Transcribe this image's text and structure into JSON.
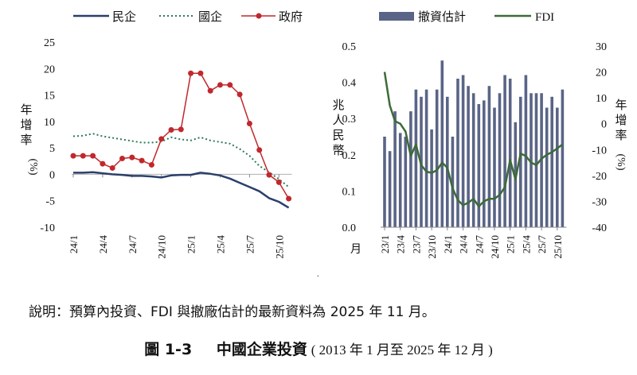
{
  "chart_data": [
    {
      "type": "line",
      "ylim": [
        -10,
        25
      ],
      "yticks": [
        25,
        20,
        15,
        10,
        5,
        0,
        -5,
        -10
      ],
      "ylabel_chars": [
        "年",
        "增",
        "率",
        "(%)"
      ],
      "xtick_labels": [
        "24/1",
        "24/4",
        "24/7",
        "24/10",
        "25/1",
        "25/4",
        "25/7",
        "25/10"
      ],
      "xtick_index": [
        0,
        3,
        6,
        9,
        12,
        15,
        18,
        21
      ],
      "series": [
        {
          "name": "民企",
          "color": "#2b3f6a",
          "style": "solid",
          "values": [
            0.3,
            0.3,
            0.4,
            0.2,
            0.0,
            -0.1,
            -0.3,
            -0.3,
            -0.4,
            -0.6,
            -0.2,
            -0.1,
            -0.1,
            0.3,
            0.1,
            -0.2,
            -0.8,
            -1.6,
            -2.4,
            -3.2,
            -4.5,
            -5.2,
            -6.3
          ]
        },
        {
          "name": "國企",
          "color": "#2e7a57",
          "style": "dotted",
          "values": [
            7.2,
            7.3,
            7.7,
            7.2,
            6.9,
            6.6,
            6.3,
            6.0,
            6.0,
            6.2,
            7.0,
            6.6,
            6.4,
            7.0,
            6.4,
            6.1,
            5.8,
            4.8,
            3.5,
            1.6,
            0.4,
            -0.9,
            -2.4
          ]
        },
        {
          "name": "政府",
          "color": "#c0282d",
          "style": "marker",
          "values": [
            3.5,
            3.5,
            3.5,
            2.0,
            1.2,
            3.0,
            3.2,
            2.6,
            1.8,
            6.7,
            8.4,
            8.5,
            19.1,
            19.1,
            15.8,
            16.9,
            16.9,
            15.1,
            9.6,
            4.6,
            -0.1,
            -1.5,
            -4.6
          ]
        }
      ]
    },
    {
      "type": "bar+line",
      "ylim_left": [
        0.0,
        0.5
      ],
      "yticks_left": [
        0.5,
        0.4,
        0.3,
        0.2,
        0.1,
        0.0
      ],
      "ylim_right": [
        -40,
        30
      ],
      "yticks_right": [
        30,
        20,
        10,
        0,
        -10,
        -20,
        -30,
        -40
      ],
      "left_label_chars": [
        "兆",
        "人",
        "民",
        "幣"
      ],
      "right_label_chars": [
        "年",
        "增",
        "率",
        "(%)"
      ],
      "xlabel_left_char": "月",
      "xtick_labels": [
        "23/1",
        "23/4",
        "23/7",
        "23/10",
        "24/1",
        "24/4",
        "24/7",
        "24/10",
        "25/1",
        "25/4",
        "25/7",
        "25/10"
      ],
      "xtick_index": [
        0,
        3,
        6,
        9,
        12,
        15,
        18,
        21,
        24,
        27,
        30,
        33
      ],
      "bar_series": {
        "name": "撤資估計",
        "color": "#5a6486",
        "values": [
          0.25,
          0.21,
          0.32,
          0.26,
          0.25,
          0.32,
          0.38,
          0.36,
          0.38,
          0.27,
          0.38,
          0.46,
          0.36,
          0.25,
          0.41,
          0.42,
          0.39,
          0.37,
          0.34,
          0.35,
          0.39,
          0.33,
          0.37,
          0.42,
          0.41,
          0.29,
          0.36,
          0.42,
          0.37,
          0.37,
          0.37,
          0.33,
          0.36,
          0.33,
          0.38
        ]
      },
      "line_series": {
        "name": "FDI",
        "color": "#3c6b38",
        "values": [
          20.0,
          7.0,
          1.0,
          0.0,
          -3.0,
          -12.5,
          -8.0,
          -16.0,
          -18.5,
          -19.0,
          -18.0,
          -15.0,
          -17.0,
          -25.0,
          -29.5,
          -31.5,
          -30.5,
          -29.0,
          -32.0,
          -30.0,
          -29.0,
          -29.0,
          -27.5,
          -24.5,
          -14.0,
          -21.5,
          -11.5,
          -12.5,
          -15.0,
          -16.0,
          -13.5,
          -12.0,
          -11.0,
          -9.5,
          -8.0
        ]
      }
    }
  ],
  "note": "說明：預算內投資、FDI 與撤廠估計的最新資料為 2025 年 11 月。",
  "caption": {
    "number": "圖 1-3",
    "title": "中國企業投資",
    "subtitle": "( 2013 年 1 月至 2025 年 12 月 )"
  },
  "dot_mark": "."
}
